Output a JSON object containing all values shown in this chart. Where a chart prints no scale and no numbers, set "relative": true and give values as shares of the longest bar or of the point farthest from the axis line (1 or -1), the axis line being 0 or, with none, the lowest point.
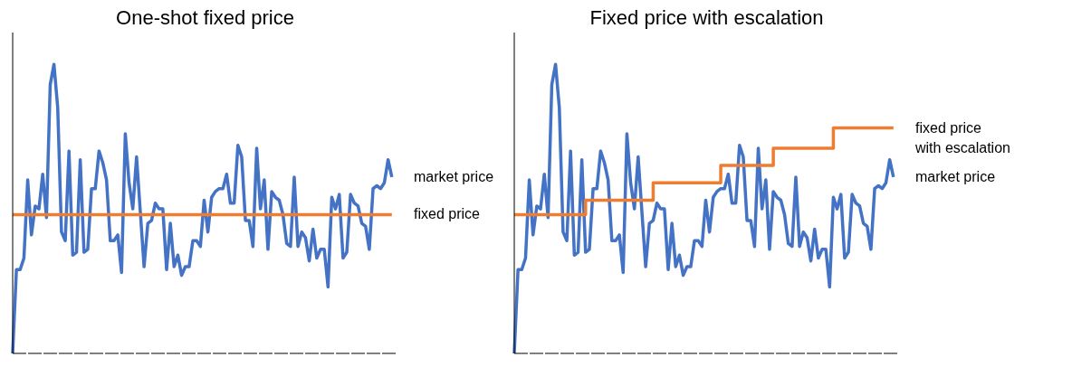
{
  "chart_data": [
    {
      "type": "line",
      "title": "One-shot fixed price",
      "relative": true,
      "legend": false,
      "categories": [
        null,
        null,
        null,
        null,
        null,
        null,
        null,
        null,
        null,
        null,
        null,
        null,
        null,
        null,
        null,
        null,
        null,
        null,
        null,
        null,
        null,
        null,
        null,
        null,
        null,
        null,
        null,
        null,
        null,
        null,
        null,
        null,
        null,
        null,
        null,
        null,
        null,
        null,
        null,
        null,
        null,
        null,
        null,
        null,
        null,
        null,
        null,
        null,
        null,
        null,
        null,
        null,
        null,
        null,
        null,
        null,
        null,
        null,
        null,
        null,
        null,
        null,
        null,
        null,
        null,
        null,
        null,
        null,
        null,
        null,
        null,
        null,
        null,
        null,
        null,
        null,
        null,
        null,
        null,
        null,
        null,
        null,
        null,
        null,
        null,
        null,
        null,
        null,
        null,
        null,
        null,
        null,
        null,
        null,
        null,
        null,
        null,
        null,
        null,
        null,
        null,
        null
      ],
      "series": [
        {
          "name": "market price",
          "color": "#4472c4",
          "values": [
            0,
            0.29,
            0.29,
            0.33,
            0.6,
            0.41,
            0.51,
            0.5,
            0.62,
            0.47,
            0.93,
            1.0,
            0.85,
            0.42,
            0.39,
            0.7,
            0.34,
            0.35,
            0.67,
            0.35,
            0.36,
            0.57,
            0.57,
            0.7,
            0.66,
            0.6,
            0.39,
            0.39,
            0.41,
            0.28,
            0.76,
            0.59,
            0.5,
            0.68,
            0.49,
            0.3,
            0.45,
            0.46,
            0.52,
            0.5,
            0.5,
            0.29,
            0.45,
            0.3,
            0.34,
            0.27,
            0.3,
            0.3,
            0.39,
            0.39,
            0.37,
            0.53,
            0.42,
            0.54,
            0.56,
            0.57,
            0.57,
            0.62,
            0.52,
            0.52,
            0.72,
            0.68,
            0.46,
            0.46,
            0.37,
            0.71,
            0.5,
            0.6,
            0.36,
            0.56,
            0.54,
            0.53,
            0.48,
            0.38,
            0.37,
            0.61,
            0.37,
            0.42,
            0.4,
            0.32,
            0.43,
            0.33,
            0.36,
            0.36,
            0.23,
            0.54,
            0.5,
            0.55,
            0.33,
            0.35,
            0.55,
            0.52,
            0.51,
            0.45,
            0.44,
            0.36,
            0.57,
            0.58,
            0.57,
            0.59,
            0.67,
            0.61
          ]
        },
        {
          "name": "fixed price",
          "color": "#ed7d31",
          "values": [
            0.48,
            0.48,
            0.48,
            0.48,
            0.48,
            0.48,
            0.48,
            0.48,
            0.48,
            0.48,
            0.48,
            0.48,
            0.48,
            0.48,
            0.48,
            0.48,
            0.48,
            0.48,
            0.48,
            0.48,
            0.48,
            0.48,
            0.48,
            0.48,
            0.48,
            0.48,
            0.48,
            0.48,
            0.48,
            0.48,
            0.48,
            0.48,
            0.48,
            0.48,
            0.48,
            0.48,
            0.48,
            0.48,
            0.48,
            0.48,
            0.48,
            0.48,
            0.48,
            0.48,
            0.48,
            0.48,
            0.48,
            0.48,
            0.48,
            0.48,
            0.48,
            0.48,
            0.48,
            0.48,
            0.48,
            0.48,
            0.48,
            0.48,
            0.48,
            0.48,
            0.48,
            0.48,
            0.48,
            0.48,
            0.48,
            0.48,
            0.48,
            0.48,
            0.48,
            0.48,
            0.48,
            0.48,
            0.48,
            0.48,
            0.48,
            0.48,
            0.48,
            0.48,
            0.48,
            0.48,
            0.48,
            0.48,
            0.48,
            0.48,
            0.48,
            0.48,
            0.48,
            0.48,
            0.48,
            0.48,
            0.48,
            0.48,
            0.48,
            0.48,
            0.48,
            0.48,
            0.48,
            0.48,
            0.48,
            0.48,
            0.48,
            0.48
          ]
        }
      ]
    },
    {
      "type": "line",
      "title": "Fixed price with escalation",
      "relative": true,
      "legend": false,
      "categories": [
        null,
        null,
        null,
        null,
        null,
        null,
        null,
        null,
        null,
        null,
        null,
        null,
        null,
        null,
        null,
        null,
        null,
        null,
        null,
        null,
        null,
        null,
        null,
        null,
        null,
        null,
        null,
        null,
        null,
        null,
        null,
        null,
        null,
        null,
        null,
        null,
        null,
        null,
        null,
        null,
        null,
        null,
        null,
        null,
        null,
        null,
        null,
        null,
        null,
        null,
        null,
        null,
        null,
        null,
        null,
        null,
        null,
        null,
        null,
        null,
        null,
        null,
        null,
        null,
        null,
        null,
        null,
        null,
        null,
        null,
        null,
        null,
        null,
        null,
        null,
        null,
        null,
        null,
        null,
        null,
        null,
        null,
        null,
        null,
        null,
        null,
        null,
        null,
        null,
        null,
        null,
        null,
        null,
        null,
        null,
        null,
        null,
        null,
        null,
        null,
        null,
        null
      ],
      "series": [
        {
          "name": "market price",
          "color": "#4472c4",
          "values": [
            0,
            0.29,
            0.29,
            0.33,
            0.6,
            0.41,
            0.51,
            0.5,
            0.62,
            0.47,
            0.93,
            1.0,
            0.85,
            0.42,
            0.39,
            0.7,
            0.34,
            0.35,
            0.67,
            0.35,
            0.36,
            0.57,
            0.57,
            0.7,
            0.66,
            0.6,
            0.39,
            0.39,
            0.41,
            0.28,
            0.76,
            0.59,
            0.5,
            0.68,
            0.49,
            0.3,
            0.45,
            0.46,
            0.52,
            0.5,
            0.5,
            0.29,
            0.45,
            0.3,
            0.34,
            0.27,
            0.3,
            0.3,
            0.39,
            0.39,
            0.37,
            0.53,
            0.42,
            0.54,
            0.56,
            0.57,
            0.57,
            0.62,
            0.52,
            0.52,
            0.72,
            0.68,
            0.46,
            0.46,
            0.37,
            0.71,
            0.5,
            0.6,
            0.36,
            0.56,
            0.54,
            0.53,
            0.48,
            0.38,
            0.37,
            0.61,
            0.37,
            0.42,
            0.4,
            0.32,
            0.43,
            0.33,
            0.36,
            0.36,
            0.23,
            0.54,
            0.5,
            0.55,
            0.33,
            0.35,
            0.55,
            0.52,
            0.51,
            0.45,
            0.44,
            0.36,
            0.57,
            0.58,
            0.57,
            0.59,
            0.67,
            0.61
          ]
        },
        {
          "name": "fixed price with escalation",
          "color": "#ed7d31",
          "type": "step",
          "values": [
            0.48,
            0.48,
            0.48,
            0.48,
            0.48,
            0.48,
            0.48,
            0.48,
            0.48,
            0.48,
            0.48,
            0.48,
            0.48,
            0.48,
            0.48,
            0.48,
            0.48,
            0.48,
            0.48,
            0.53,
            0.53,
            0.53,
            0.53,
            0.53,
            0.53,
            0.53,
            0.53,
            0.53,
            0.53,
            0.53,
            0.53,
            0.53,
            0.53,
            0.53,
            0.53,
            0.53,
            0.53,
            0.59,
            0.59,
            0.59,
            0.59,
            0.59,
            0.59,
            0.59,
            0.59,
            0.59,
            0.59,
            0.59,
            0.59,
            0.59,
            0.59,
            0.59,
            0.59,
            0.59,
            0.59,
            0.65,
            0.65,
            0.65,
            0.65,
            0.65,
            0.65,
            0.65,
            0.65,
            0.65,
            0.65,
            0.65,
            0.65,
            0.65,
            0.65,
            0.71,
            0.71,
            0.71,
            0.71,
            0.71,
            0.71,
            0.71,
            0.71,
            0.71,
            0.71,
            0.71,
            0.71,
            0.71,
            0.71,
            0.71,
            0.71,
            0.78,
            0.78,
            0.78,
            0.78,
            0.78,
            0.78,
            0.78,
            0.78,
            0.78,
            0.78,
            0.78,
            0.78,
            0.78,
            0.78,
            0.78,
            0.78,
            0.78
          ]
        }
      ]
    }
  ]
}
